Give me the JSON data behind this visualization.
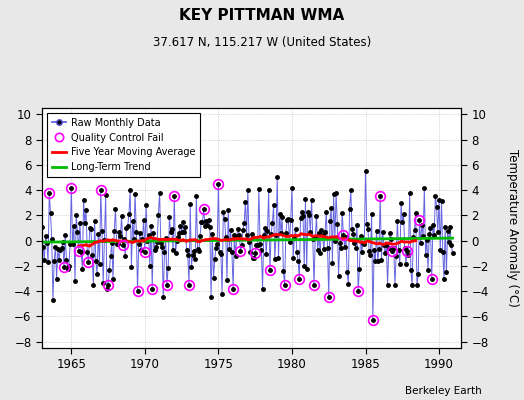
{
  "title": "KEY PITTMAN WMA",
  "subtitle": "37.617 N, 115.217 W (United States)",
  "ylabel": "Temperature Anomaly (°C)",
  "credit": "Berkeley Earth",
  "xlim": [
    1963.0,
    1991.5
  ],
  "ylim": [
    -8.5,
    10.5
  ],
  "yticks": [
    -8,
    -6,
    -4,
    -2,
    0,
    2,
    4,
    6,
    8,
    10
  ],
  "xticks": [
    1965,
    1970,
    1975,
    1980,
    1985,
    1990
  ],
  "bg_color": "#e8e8e8",
  "plot_bg_color": "#ffffff",
  "raw_line_color": "#5555dd",
  "raw_marker_color": "#000000",
  "raw_marker_size": 2.5,
  "ma_color": "#ff0000",
  "trend_color": "#00bb00",
  "qc_color": "magenta",
  "legend_items": [
    "Raw Monthly Data",
    "Quality Control Fail",
    "Five Year Moving Average",
    "Long-Term Trend"
  ]
}
